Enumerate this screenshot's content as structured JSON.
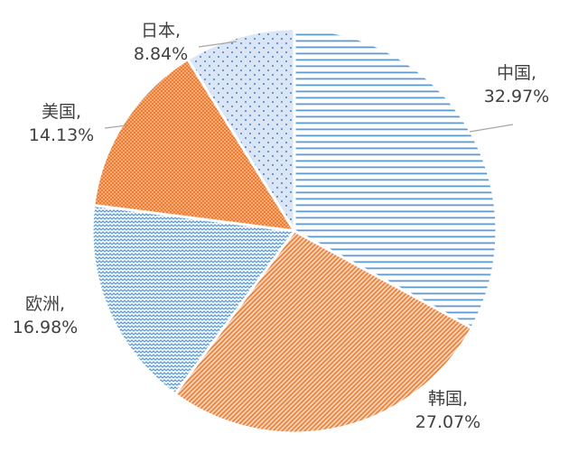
{
  "chart_data": {
    "type": "pie",
    "title": "",
    "slices": [
      {
        "name": "中国",
        "value": 32.97,
        "label_line1": "中国,",
        "label_line2": "32.97%",
        "fill_color": "#5b9bd5",
        "pattern": "horizontal-lines"
      },
      {
        "name": "韩国",
        "value": 27.07,
        "label_line1": "韩国,",
        "label_line2": "27.07%",
        "fill_color": "#ed7d31",
        "pattern": "diagonal-lines"
      },
      {
        "name": "欧洲",
        "value": 16.98,
        "label_line1": "欧洲,",
        "label_line2": "16.98%",
        "fill_color": "#5b9bd5",
        "pattern": "wave"
      },
      {
        "name": "美国",
        "value": 14.13,
        "label_line1": "美国,",
        "label_line2": "14.13%",
        "fill_color": "#ed7d31",
        "pattern": "dense-dots"
      },
      {
        "name": "日本",
        "value": 8.84,
        "label_line1": "日本,",
        "label_line2": "8.84%",
        "fill_color": "#5b9bd5",
        "pattern": "sparse-dots"
      }
    ],
    "start_angle_deg": 0,
    "direction": "clockwise",
    "legend": "none",
    "leader_line_color": "#a6a6a6"
  }
}
